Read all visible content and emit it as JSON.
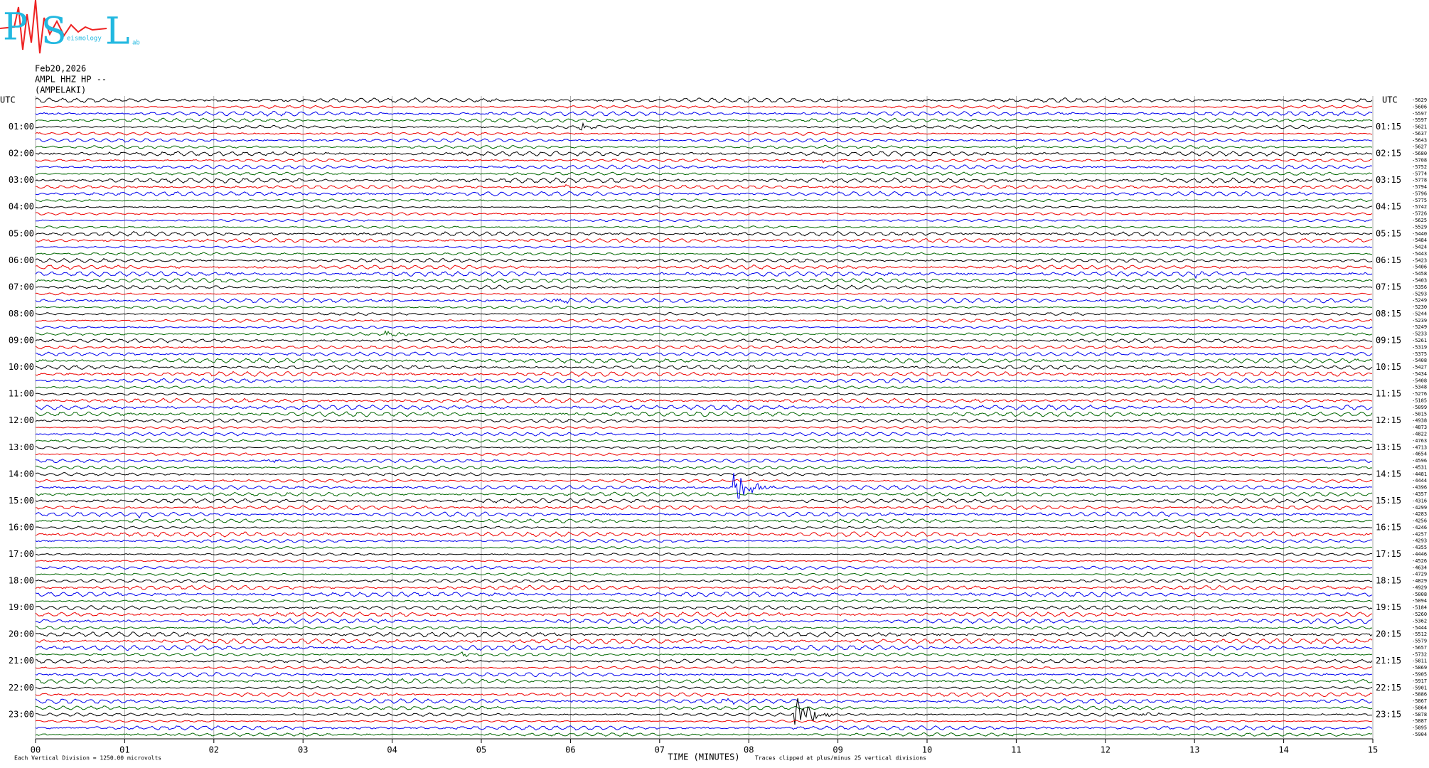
{
  "logo": {
    "p": "P",
    "s": "S",
    "l": "L",
    "seismology": "eismology",
    "lab": "ab"
  },
  "header": {
    "date": "Feb20,2026",
    "channel": "AMPL HHZ HP --",
    "station": "(AMPELAKI)"
  },
  "left_axis": {
    "title": "UTC",
    "labels": [
      "01:00",
      "02:00",
      "03:00",
      "04:00",
      "05:00",
      "06:00",
      "07:00",
      "08:00",
      "09:00",
      "10:00",
      "11:00",
      "12:00",
      "13:00",
      "14:00",
      "15:00",
      "16:00",
      "17:00",
      "18:00",
      "19:00",
      "20:00",
      "21:00",
      "22:00",
      "23:00"
    ]
  },
  "right_axis": {
    "title": "UTC",
    "labels": [
      "01:15",
      "02:15",
      "03:15",
      "04:15",
      "05:15",
      "06:15",
      "07:15",
      "08:15",
      "09:15",
      "10:15",
      "11:15",
      "12:15",
      "13:15",
      "14:15",
      "15:15",
      "16:15",
      "17:15",
      "18:15",
      "19:15",
      "20:15",
      "21:15",
      "22:15",
      "23:15"
    ],
    "trace_offsets": [
      -5629,
      -5606,
      -5597,
      -5597,
      -5621,
      -5637,
      -5643,
      -5627,
      -5680,
      -5708,
      -5752,
      -5774,
      -5778,
      -5794,
      -5796,
      -5775,
      -5742,
      -5726,
      -5625,
      -5529,
      -5440,
      -5484,
      -5424,
      -5443,
      -5423,
      -5406,
      -5458,
      -5403,
      -5356,
      -5293,
      -5249,
      -5230,
      -5244,
      -5239,
      -5249,
      -5233,
      -5261,
      -5319,
      -5375,
      -5408,
      -5427,
      -5434,
      -5408,
      -5348,
      -5276,
      -5185,
      -5099,
      -5015,
      -4938,
      -4873,
      -4822,
      -4763,
      -4713,
      -4654,
      -4596,
      -4531,
      -4481,
      -4444,
      -4396,
      -4357,
      -4316,
      -4299,
      -4283,
      -4256,
      -4246,
      -4257,
      -4293,
      -4355,
      -4446,
      -4526,
      -4634,
      -4729,
      -4829,
      -4929,
      -5008,
      -5094,
      -5184,
      -5260,
      -5362,
      -5444,
      -5512,
      -5579,
      -5657,
      -5732,
      -5811,
      -5869,
      -5905,
      -5917,
      -5901,
      -5886,
      -5867,
      -5864,
      -5878,
      -5887,
      -5895,
      -5904
    ]
  },
  "time_axis": {
    "title": "TIME (MINUTES)",
    "ticks": [
      "00",
      "01",
      "02",
      "03",
      "04",
      "05",
      "06",
      "07",
      "08",
      "09",
      "10",
      "11",
      "12",
      "13",
      "14",
      "15"
    ]
  },
  "footer": {
    "scale": "Each Vertical Division = 1250.00 microvolts",
    "clip": "Traces clipped at plus/minus 25 vertical divisions"
  },
  "trace_colors": [
    "#000000",
    "#ee0000",
    "#0000ee",
    "#006600"
  ]
}
